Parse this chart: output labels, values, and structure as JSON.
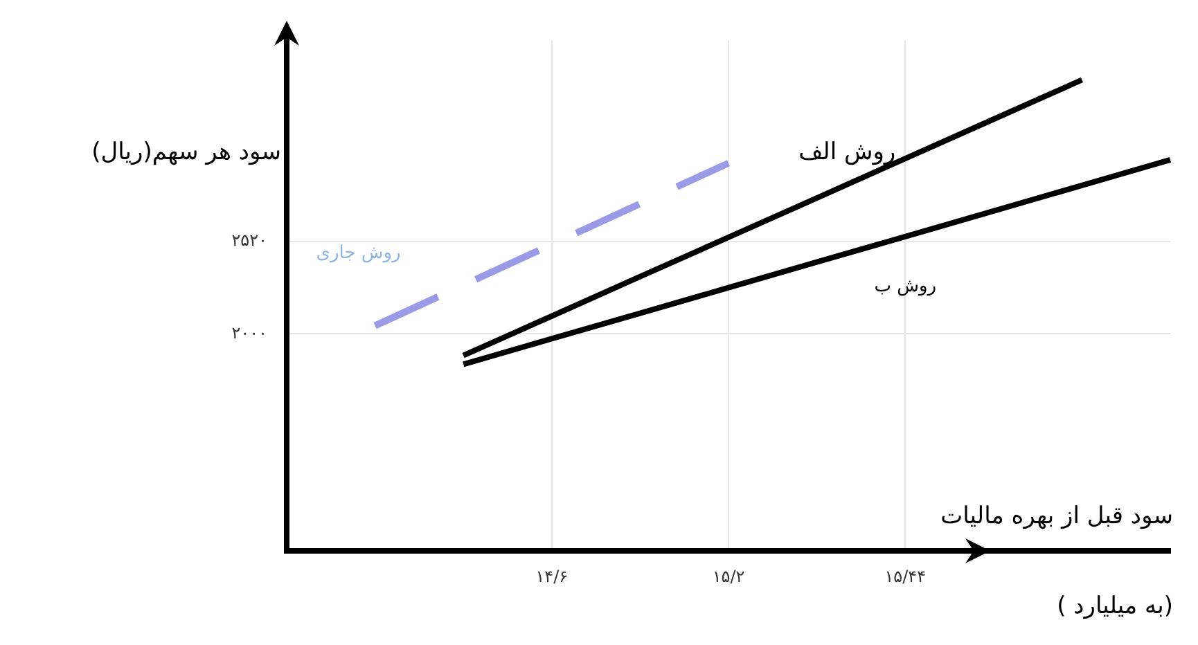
{
  "chart_data": {
    "type": "line",
    "ylabel": "سود هر سهم(ریال)",
    "xlabel": "سود قبل از بهره مالیات",
    "annotations": [
      "(به میلیارد )"
    ],
    "categories": [
      null,
      null,
      null,
      "۱۴/۶",
      null,
      "۱۵/۲",
      null,
      "۱۵/۴۴",
      null,
      null,
      null
    ],
    "ylim": [
      780,
      3650
    ],
    "yticks": [
      {
        "value": 2000,
        "label": "۲۰۰۰"
      },
      {
        "value": 2520,
        "label": "۲۵۲۰"
      }
    ],
    "grid": true,
    "legend": false,
    "marker": "none",
    "series": [
      {
        "name": "روش الف",
        "color": "#000000",
        "values": [
          null,
          null,
          1879,
          2100,
          2322,
          2543,
          2764,
          2986,
          3207,
          3428,
          null
        ]
      },
      {
        "name": "روش ب",
        "color": "#000000",
        "values": [
          null,
          null,
          1829,
          1973,
          2116,
          2260,
          2404,
          2547,
          2691,
          2835,
          2979
        ]
      },
      {
        "name": "روش جاری",
        "color": "#9a9ae6",
        "line_style": "dashed",
        "values": [
          null,
          2046,
          2274,
          2503,
          2732,
          2960,
          null,
          null,
          null,
          null,
          null
        ]
      }
    ]
  }
}
